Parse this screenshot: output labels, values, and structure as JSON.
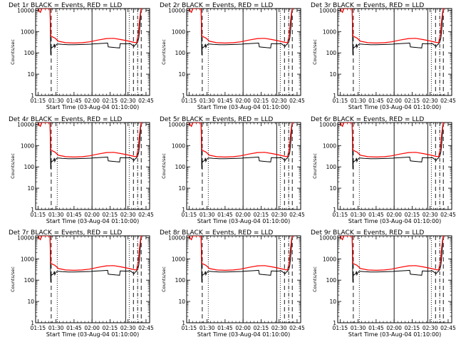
{
  "chart_data": [
    {
      "type": "line",
      "title": "Det 1r BLACK = Events, RED = LLD"
    },
    {
      "type": "line",
      "title": "Det 2r BLACK = Events, RED = LLD"
    },
    {
      "type": "line",
      "title": "Det 3r BLACK = Events, RED = LLD"
    },
    {
      "type": "line",
      "title": "Det 4r BLACK = Events, RED = LLD"
    },
    {
      "type": "line",
      "title": "Det 5r BLACK = Events, RED = LLD"
    },
    {
      "type": "line",
      "title": "Det 6r BLACK = Events, RED = LLD"
    },
    {
      "type": "line",
      "title": "Det 7r BLACK = Events, RED = LLD"
    },
    {
      "type": "line",
      "title": "Det 8r BLACK = Events, RED = LLD"
    },
    {
      "type": "line",
      "title": "Det 9r BLACK = Events, RED = LLD"
    }
  ],
  "shared_axes": {
    "xlabel": "Start Time (03-Aug-04 01:10:00)",
    "ylabel": "Counts/sec",
    "x_ticks": [
      "01:15",
      "01:30",
      "01:45",
      "02:00",
      "02:15",
      "02:30",
      "02:45"
    ],
    "x_tick_minutes": [
      75,
      90,
      105,
      120,
      135,
      150,
      165
    ],
    "xlim_minutes": [
      73,
      168
    ],
    "y_ticks": [
      "1",
      "10",
      "100",
      "1000",
      "10000"
    ],
    "y_tick_values": [
      1,
      10,
      100,
      1000,
      10000
    ],
    "ylim": [
      1,
      12000
    ],
    "y_scale": "log",
    "events_color": "#000000",
    "lld_color": "#ff0000"
  },
  "series": {
    "events": {
      "x": [
        75.2,
        76,
        77,
        78,
        82,
        85,
        85.6,
        86,
        88,
        88.6,
        89,
        89.5,
        90,
        90.5,
        92,
        95,
        98,
        100,
        105,
        110,
        115,
        119,
        120,
        125,
        130,
        133,
        133.5,
        136,
        140,
        143,
        143.5,
        148,
        152,
        155,
        156,
        157,
        158,
        159,
        160,
        160.5,
        161,
        162
      ],
      "y": [
        12000,
        9000,
        8000,
        12000,
        12000,
        12000,
        80,
        170,
        200,
        260,
        180,
        210,
        240,
        250,
        260,
        250,
        245,
        240,
        242,
        245,
        250,
        255,
        260,
        270,
        280,
        290,
        190,
        185,
        175,
        170,
        270,
        265,
        270,
        200,
        240,
        260,
        320,
        500,
        2000,
        7000,
        12000,
        12000
      ]
    },
    "lld": {
      "x": [
        75.2,
        76,
        77,
        78,
        82,
        85,
        85.6,
        86,
        89,
        92,
        98,
        105,
        112,
        118,
        125,
        132,
        138,
        144,
        150,
        155,
        157,
        158.5,
        159.5,
        160.5,
        161,
        162
      ],
      "y": [
        12000,
        9000,
        8000,
        12000,
        12000,
        12000,
        700,
        600,
        500,
        350,
        300,
        290,
        300,
        330,
        400,
        470,
        480,
        420,
        360,
        310,
        300,
        700,
        3000,
        9000,
        12000,
        12000
      ]
    }
  },
  "markers": {
    "dashed_x": [
      86,
      154.5,
      161
    ],
    "dotted_x": [
      91,
      151
    ],
    "solid_x": [
      120,
      148
    ],
    "dashdot_x": [
      158
    ]
  }
}
